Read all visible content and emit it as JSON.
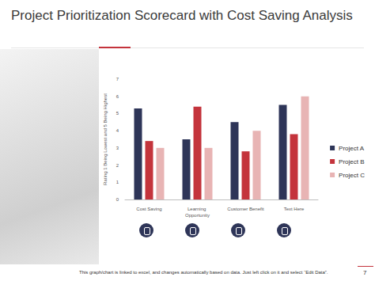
{
  "chart_data": {
    "type": "bar",
    "title": "Project Prioritization Scorecard with Cost Saving Analysis",
    "y_label": "Rating 1 Being Lowest and 5 Being Highest",
    "annotations": [
      "This graph/chart is linked to excel, and changes automatically based on data. Just left click on it and select “Edit Data”.",
      "7"
    ],
    "categories": [
      "Cost Saving",
      "Learning Opportunity",
      "Customer Benefit",
      "Text Here"
    ],
    "series": [
      {
        "name": "Project A",
        "color": "#2e3558",
        "values": [
          5.3,
          3.5,
          4.5,
          5.5
        ]
      },
      {
        "name": "Project B",
        "color": "#c4343c",
        "values": [
          3.4,
          5.4,
          2.8,
          3.8
        ]
      },
      {
        "name": "Project C",
        "color": "#e8b4b4",
        "values": [
          3.0,
          3.0,
          4.0,
          6.0
        ]
      }
    ],
    "ylim": [
      0,
      7
    ],
    "yticks": [
      0,
      1,
      2,
      3,
      4,
      5,
      6,
      7
    ],
    "grid": false,
    "legend": "right"
  }
}
